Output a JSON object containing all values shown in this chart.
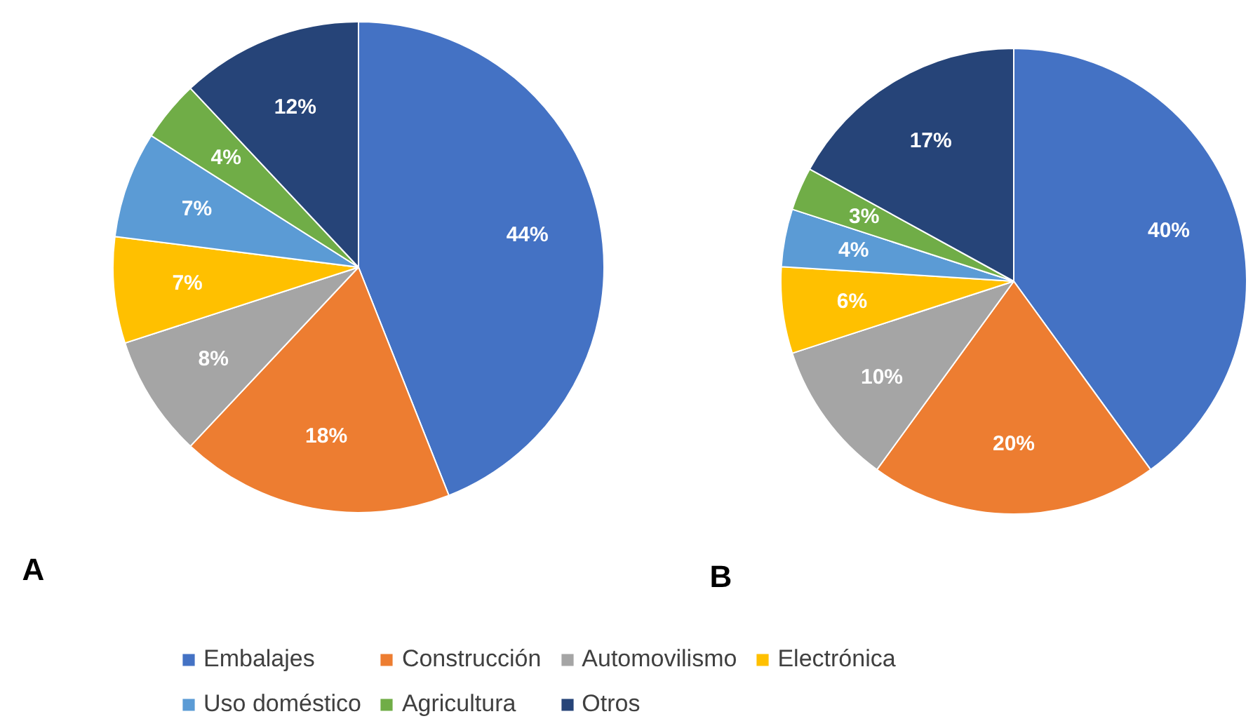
{
  "chart_data": [
    {
      "type": "pie",
      "title": "A",
      "categories": [
        "Embalajes",
        "Construcción",
        "Automovilismo",
        "Electrónica",
        "Uso doméstico",
        "Agricultura",
        "Otros"
      ],
      "values": [
        44,
        18,
        8,
        7,
        7,
        4,
        12
      ],
      "value_labels": [
        "44%",
        "18%",
        "8%",
        "7%",
        "7%",
        "4%",
        "12%"
      ],
      "colors": [
        "#4472c4",
        "#ed7d31",
        "#a5a5a5",
        "#ffc000",
        "#5b9bd5",
        "#70ad47",
        "#264478"
      ],
      "legend": "bottom"
    },
    {
      "type": "pie",
      "title": "B",
      "categories": [
        null,
        null,
        null,
        null,
        null,
        null,
        null
      ],
      "values": [
        40,
        20,
        10,
        6,
        4,
        3,
        17
      ],
      "value_labels": [
        "40%",
        "20%",
        "10%",
        "6%",
        "4%",
        "3%",
        "17%"
      ],
      "colors": [
        "#4472c4",
        "#ed7d31",
        "#a5a5a5",
        "#ffc000",
        "#5b9bd5",
        "#70ad47",
        "#264478"
      ]
    }
  ]
}
